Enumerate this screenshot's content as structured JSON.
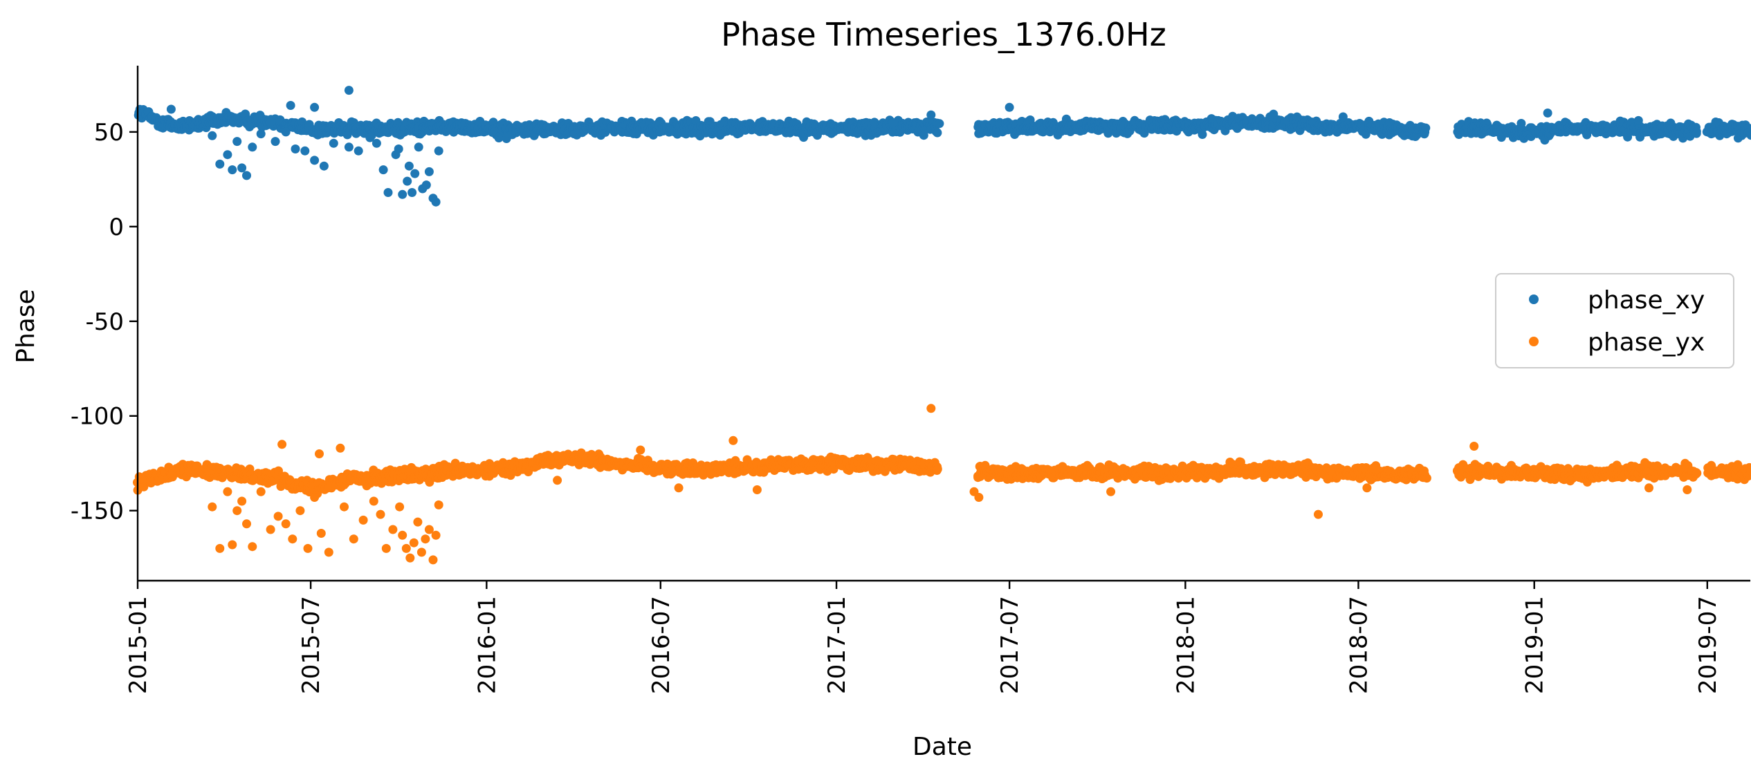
{
  "chart_data": {
    "type": "scatter",
    "title": "Phase Timeseries_1376.0Hz",
    "xlabel": "Date",
    "ylabel": "Phase",
    "xlim": [
      "2015-01-01",
      "2019-08-15"
    ],
    "ylim": [
      -187,
      85
    ],
    "yticks": [
      50,
      0,
      -50,
      -100,
      -150
    ],
    "ytick_labels": [
      "50",
      "0",
      "-50",
      "-100",
      "-150"
    ],
    "xticks": [
      "2015-01-01",
      "2015-07-01",
      "2016-01-01",
      "2016-07-01",
      "2017-01-01",
      "2017-07-01",
      "2018-01-01",
      "2018-07-01",
      "2019-01-01",
      "2019-07-01"
    ],
    "xtick_labels": [
      "2015-01",
      "2015-07",
      "2016-01",
      "2016-07",
      "2017-01",
      "2017-07",
      "2018-01",
      "2018-07",
      "2019-01",
      "2019-07"
    ],
    "grid": false,
    "legend_position": "center-right",
    "series": [
      {
        "name": "phase_xy",
        "color": "#1f77b4",
        "data_gaps": [
          [
            "2017-04-18",
            "2017-05-28"
          ],
          [
            "2018-09-10",
            "2018-10-12"
          ],
          [
            "2019-06-20",
            "2019-07-01"
          ]
        ],
        "trend": [
          [
            "2015-01-01",
            61
          ],
          [
            "2015-01-20",
            56
          ],
          [
            "2015-02-15",
            53
          ],
          [
            "2015-03-20",
            55
          ],
          [
            "2015-04-10",
            57
          ],
          [
            "2015-06-01",
            55
          ],
          [
            "2015-07-01",
            51
          ],
          [
            "2015-09-01",
            52
          ],
          [
            "2015-10-01",
            51
          ],
          [
            "2015-11-01",
            53
          ],
          [
            "2016-01-01",
            52
          ],
          [
            "2016-02-01",
            51
          ],
          [
            "2016-04-01",
            52
          ],
          [
            "2016-07-01",
            52
          ],
          [
            "2016-10-01",
            52
          ],
          [
            "2017-01-01",
            52
          ],
          [
            "2017-04-10",
            53
          ],
          [
            "2017-06-01",
            52
          ],
          [
            "2017-10-01",
            53
          ],
          [
            "2018-01-01",
            53
          ],
          [
            "2018-03-15",
            55
          ],
          [
            "2018-06-01",
            53
          ],
          [
            "2018-09-01",
            51
          ],
          [
            "2018-10-15",
            52
          ],
          [
            "2019-01-01",
            50
          ],
          [
            "2019-03-01",
            52
          ],
          [
            "2019-05-01",
            51
          ],
          [
            "2019-08-15",
            51
          ]
        ],
        "scatter_outliers": [
          [
            "2015-03-20",
            48
          ],
          [
            "2015-03-28",
            33
          ],
          [
            "2015-04-05",
            38
          ],
          [
            "2015-04-10",
            30
          ],
          [
            "2015-04-15",
            45
          ],
          [
            "2015-04-20",
            31
          ],
          [
            "2015-04-25",
            27
          ],
          [
            "2015-05-01",
            42
          ],
          [
            "2015-05-10",
            49
          ],
          [
            "2015-05-25",
            45
          ],
          [
            "2015-06-05",
            50
          ],
          [
            "2015-06-15",
            41
          ],
          [
            "2015-06-25",
            40
          ],
          [
            "2015-07-05",
            35
          ],
          [
            "2015-07-15",
            32
          ],
          [
            "2015-07-25",
            44
          ],
          [
            "2015-08-10",
            42
          ],
          [
            "2015-08-20",
            40
          ],
          [
            "2015-09-01",
            47
          ],
          [
            "2015-09-08",
            44
          ],
          [
            "2015-09-15",
            30
          ],
          [
            "2015-09-20",
            18
          ],
          [
            "2015-09-28",
            38
          ],
          [
            "2015-10-01",
            41
          ],
          [
            "2015-10-05",
            17
          ],
          [
            "2015-10-10",
            24
          ],
          [
            "2015-10-12",
            32
          ],
          [
            "2015-10-15",
            18
          ],
          [
            "2015-10-18",
            28
          ],
          [
            "2015-10-22",
            42
          ],
          [
            "2015-10-26",
            20
          ],
          [
            "2015-10-30",
            22
          ],
          [
            "2015-11-02",
            29
          ],
          [
            "2015-11-06",
            15
          ],
          [
            "2015-11-09",
            13
          ],
          [
            "2015-11-12",
            40
          ],
          [
            "2015-06-10",
            64
          ],
          [
            "2015-07-05",
            63
          ],
          [
            "2015-08-10",
            72
          ],
          [
            "2015-02-05",
            62
          ],
          [
            "2015-05-20",
            55
          ],
          [
            "2017-04-10",
            59
          ],
          [
            "2017-07-01",
            63
          ],
          [
            "2019-01-15",
            60
          ],
          [
            "2018-06-15",
            58
          ],
          [
            "2017-03-01",
            55
          ],
          [
            "2019-04-20",
            56
          ]
        ]
      },
      {
        "name": "phase_yx",
        "color": "#ff7f0e",
        "data_gaps": [
          [
            "2017-04-18",
            "2017-05-28"
          ],
          [
            "2018-09-10",
            "2018-10-12"
          ],
          [
            "2019-06-20",
            "2019-07-01"
          ]
        ],
        "trend": [
          [
            "2015-01-01",
            -135
          ],
          [
            "2015-02-15",
            -128
          ],
          [
            "2015-04-01",
            -130
          ],
          [
            "2015-06-01",
            -133
          ],
          [
            "2015-07-01",
            -138
          ],
          [
            "2015-08-15",
            -133
          ],
          [
            "2015-10-01",
            -132
          ],
          [
            "2015-11-15",
            -130
          ],
          [
            "2016-01-01",
            -129
          ],
          [
            "2016-02-10",
            -127
          ],
          [
            "2016-03-10",
            -122
          ],
          [
            "2016-04-15",
            -123
          ],
          [
            "2016-06-01",
            -126
          ],
          [
            "2016-08-01",
            -128
          ],
          [
            "2016-10-01",
            -127
          ],
          [
            "2017-01-01",
            -125
          ],
          [
            "2017-04-10",
            -127
          ],
          [
            "2017-06-01",
            -130
          ],
          [
            "2017-09-01",
            -130
          ],
          [
            "2018-01-01",
            -130
          ],
          [
            "2018-03-15",
            -128
          ],
          [
            "2018-06-01",
            -130
          ],
          [
            "2018-09-01",
            -131
          ],
          [
            "2018-10-15",
            -129
          ],
          [
            "2019-01-01",
            -130
          ],
          [
            "2019-03-01",
            -131
          ],
          [
            "2019-05-01",
            -129
          ],
          [
            "2019-08-15",
            -130
          ]
        ],
        "scatter_outliers": [
          [
            "2015-03-20",
            -148
          ],
          [
            "2015-03-28",
            -170
          ],
          [
            "2015-04-05",
            -140
          ],
          [
            "2015-04-10",
            -168
          ],
          [
            "2015-04-15",
            -150
          ],
          [
            "2015-04-20",
            -145
          ],
          [
            "2015-04-25",
            -157
          ],
          [
            "2015-05-01",
            -169
          ],
          [
            "2015-05-10",
            -140
          ],
          [
            "2015-05-20",
            -160
          ],
          [
            "2015-05-28",
            -153
          ],
          [
            "2015-06-05",
            -157
          ],
          [
            "2015-06-12",
            -165
          ],
          [
            "2015-06-20",
            -150
          ],
          [
            "2015-06-28",
            -170
          ],
          [
            "2015-07-05",
            -143
          ],
          [
            "2015-07-12",
            -162
          ],
          [
            "2015-07-20",
            -172
          ],
          [
            "2015-08-05",
            -148
          ],
          [
            "2015-08-15",
            -165
          ],
          [
            "2015-08-25",
            -155
          ],
          [
            "2015-09-05",
            -145
          ],
          [
            "2015-09-12",
            -152
          ],
          [
            "2015-09-18",
            -170
          ],
          [
            "2015-09-25",
            -160
          ],
          [
            "2015-10-02",
            -148
          ],
          [
            "2015-10-05",
            -163
          ],
          [
            "2015-10-09",
            -170
          ],
          [
            "2015-10-13",
            -175
          ],
          [
            "2015-10-17",
            -167
          ],
          [
            "2015-10-21",
            -156
          ],
          [
            "2015-10-25",
            -172
          ],
          [
            "2015-10-29",
            -165
          ],
          [
            "2015-11-02",
            -160
          ],
          [
            "2015-11-06",
            -176
          ],
          [
            "2015-11-09",
            -163
          ],
          [
            "2015-11-12",
            -147
          ],
          [
            "2015-06-01",
            -115
          ],
          [
            "2015-07-10",
            -120
          ],
          [
            "2015-08-01",
            -117
          ],
          [
            "2016-09-15",
            -113
          ],
          [
            "2016-06-10",
            -118
          ],
          [
            "2016-03-15",
            -134
          ],
          [
            "2017-04-10",
            -96
          ],
          [
            "2017-05-30",
            -143
          ],
          [
            "2017-05-25",
            -140
          ],
          [
            "2017-10-15",
            -140
          ],
          [
            "2018-05-20",
            -152
          ],
          [
            "2018-10-30",
            -116
          ],
          [
            "2018-07-10",
            -138
          ],
          [
            "2019-05-01",
            -138
          ],
          [
            "2019-06-10",
            -139
          ],
          [
            "2016-10-10",
            -139
          ],
          [
            "2016-07-20",
            -138
          ]
        ]
      }
    ]
  }
}
